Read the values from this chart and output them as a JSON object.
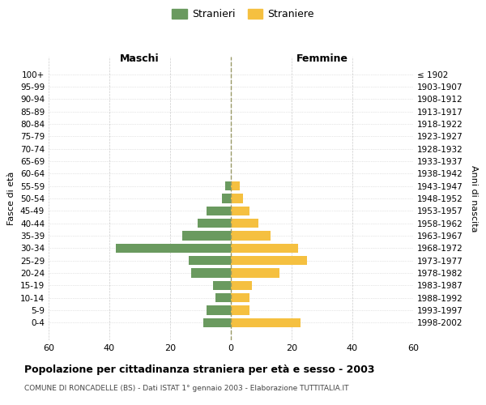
{
  "age_groups": [
    "100+",
    "95-99",
    "90-94",
    "85-89",
    "80-84",
    "75-79",
    "70-74",
    "65-69",
    "60-64",
    "55-59",
    "50-54",
    "45-49",
    "40-44",
    "35-39",
    "30-34",
    "25-29",
    "20-24",
    "15-19",
    "10-14",
    "5-9",
    "0-4"
  ],
  "birth_years": [
    "≤ 1902",
    "1903-1907",
    "1908-1912",
    "1913-1917",
    "1918-1922",
    "1923-1927",
    "1928-1932",
    "1933-1937",
    "1938-1942",
    "1943-1947",
    "1948-1952",
    "1953-1957",
    "1958-1962",
    "1963-1967",
    "1968-1972",
    "1973-1977",
    "1978-1982",
    "1983-1987",
    "1988-1992",
    "1993-1997",
    "1998-2002"
  ],
  "maschi": [
    0,
    0,
    0,
    0,
    0,
    0,
    0,
    0,
    0,
    2,
    3,
    8,
    11,
    16,
    38,
    14,
    13,
    6,
    5,
    8,
    9
  ],
  "femmine": [
    0,
    0,
    0,
    0,
    0,
    0,
    0,
    0,
    0,
    3,
    4,
    6,
    9,
    13,
    22,
    25,
    16,
    7,
    6,
    6,
    23
  ],
  "maschi_color": "#6a9a5f",
  "femmine_color": "#f5c040",
  "title": "Popolazione per cittadinanza straniera per età e sesso - 2003",
  "subtitle": "COMUNE DI RONCADELLE (BS) - Dati ISTAT 1° gennaio 2003 - Elaborazione TUTTITALIA.IT",
  "legend_maschi": "Stranieri",
  "legend_femmine": "Straniere",
  "xlabel_left": "Maschi",
  "xlabel_right": "Femmine",
  "ylabel_left": "Fasce di età",
  "ylabel_right": "Anni di nascita",
  "xlim": 60,
  "background_color": "#ffffff",
  "grid_color": "#cccccc",
  "vline_color": "#999966"
}
